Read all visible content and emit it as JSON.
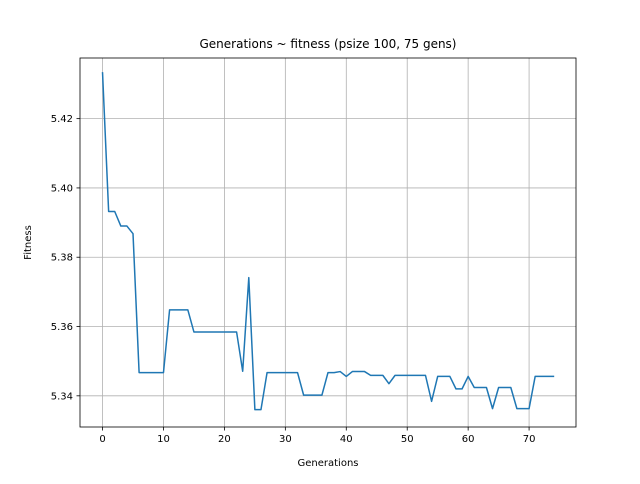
{
  "chart_data": {
    "type": "line",
    "title": "Generations ~ fitness (psize 100, 75 gens)",
    "xlabel": "Generations",
    "ylabel": "Fitness",
    "xlim": [
      -3.7,
      77.7
    ],
    "ylim": [
      5.331,
      5.4375
    ],
    "xticks": [
      0,
      10,
      20,
      30,
      40,
      50,
      60,
      70
    ],
    "yticks": [
      5.34,
      5.36,
      5.38,
      5.4,
      5.42
    ],
    "ytick_labels": [
      "5.34",
      "5.36",
      "5.38",
      "5.40",
      "5.42"
    ],
    "grid": true,
    "series": [
      {
        "color": "#1f77b4",
        "x": [
          0,
          1,
          2,
          3,
          4,
          5,
          6,
          7,
          8,
          9,
          10,
          11,
          12,
          13,
          14,
          15,
          16,
          17,
          18,
          19,
          20,
          21,
          22,
          23,
          24,
          25,
          26,
          27,
          28,
          29,
          30,
          31,
          32,
          33,
          34,
          35,
          36,
          37,
          38,
          39,
          40,
          41,
          42,
          43,
          44,
          45,
          46,
          47,
          48,
          49,
          50,
          51,
          52,
          53,
          54,
          55,
          56,
          57,
          58,
          59,
          60,
          61,
          62,
          63,
          64,
          65,
          66,
          67,
          68,
          69,
          70,
          71,
          72,
          73,
          74
        ],
        "values": [
          5.4332,
          5.3932,
          5.3932,
          5.389,
          5.389,
          5.3868,
          5.3467,
          5.3467,
          5.3467,
          5.3467,
          5.3467,
          5.3648,
          5.3648,
          5.3648,
          5.3648,
          5.3584,
          5.3584,
          5.3584,
          5.3584,
          5.3584,
          5.3584,
          5.3584,
          5.3584,
          5.3471,
          5.3741,
          5.336,
          5.336,
          5.3467,
          5.3467,
          5.3467,
          5.3467,
          5.3467,
          5.3467,
          5.3402,
          5.3402,
          5.3402,
          5.3402,
          5.3467,
          5.3467,
          5.347,
          5.3456,
          5.347,
          5.347,
          5.347,
          5.3459,
          5.3459,
          5.3459,
          5.3435,
          5.3459,
          5.3459,
          5.3459,
          5.3459,
          5.3459,
          5.3459,
          5.3384,
          5.3456,
          5.3456,
          5.3456,
          5.342,
          5.342,
          5.3456,
          5.3424,
          5.3424,
          5.3424,
          5.3363,
          5.3424,
          5.3424,
          5.3424,
          5.3363,
          5.3363,
          5.3363,
          5.3456,
          5.3456,
          5.3456,
          5.3456
        ]
      }
    ]
  }
}
